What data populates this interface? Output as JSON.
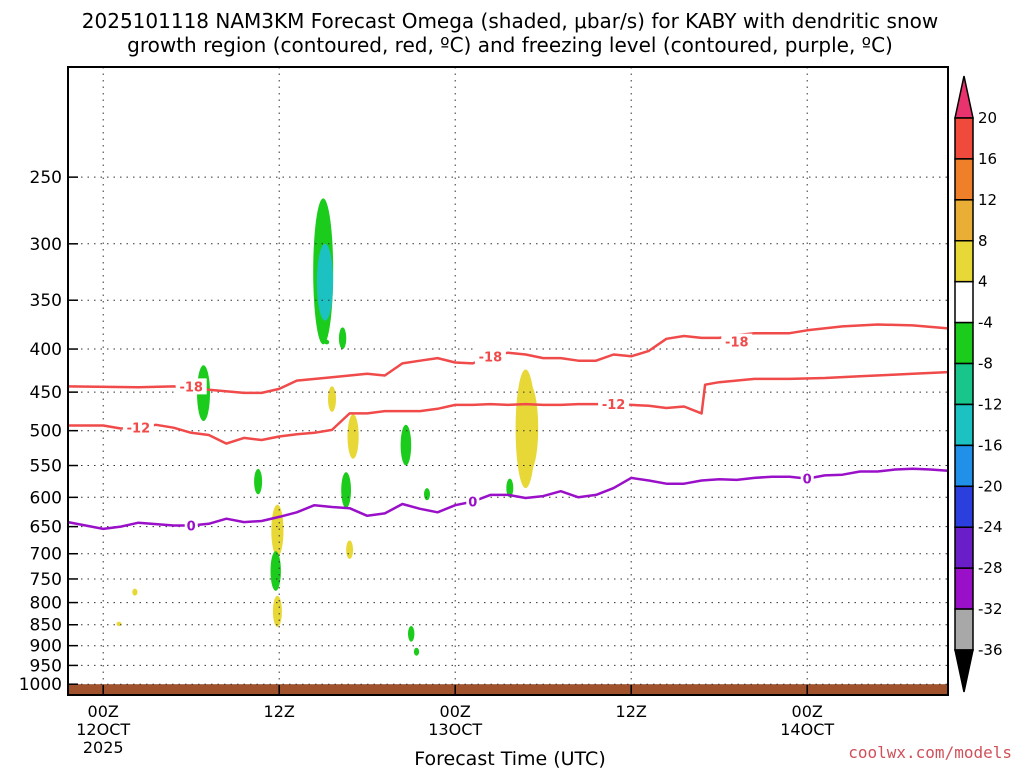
{
  "chart_data": {
    "type": "contour",
    "title_lines": [
      "2025101118 NAM3KM Forecast Omega (shaded, μbar/s) for KABY with dendritic snow",
      "growth region (contoured, red, ºC) and freezing level (contoured, purple, ºC)"
    ],
    "xlabel": "Forecast Time (UTC)",
    "credit": "coolwx.com/models",
    "grid": true,
    "x_axis": {
      "unit": "hours since 2025-10-11 18Z",
      "range": [
        -2,
        48
      ],
      "ticks": [
        {
          "h": 0,
          "lines": [
            "00Z",
            "12OCT",
            "2025"
          ]
        },
        {
          "h": 10,
          "lines": [
            "12Z"
          ]
        },
        {
          "h": 20,
          "lines": [
            "00Z",
            "13OCT"
          ]
        },
        {
          "h": 30,
          "lines": [
            "12Z"
          ]
        },
        {
          "h": 40,
          "lines": [
            "00Z",
            "14OCT"
          ]
        }
      ]
    },
    "y_axis": {
      "unit": "hPa",
      "scale": "log",
      "range": [
        1030,
        185
      ],
      "ticks": [
        250,
        300,
        350,
        400,
        450,
        500,
        550,
        600,
        650,
        700,
        750,
        800,
        850,
        900,
        950,
        1000
      ]
    },
    "colorbar": {
      "levels": [
        "20",
        "16",
        "12",
        "8",
        "4",
        "-4",
        "-8",
        "-12",
        "-16",
        "-20",
        "-24",
        "-28",
        "-32",
        "-36"
      ],
      "bins": [
        {
          "color": "#e8336e",
          "top_arrow": true
        },
        {
          "color": "#f04a3c"
        },
        {
          "color": "#f07f2a"
        },
        {
          "color": "#e8ae35"
        },
        {
          "color": "#e8d837"
        },
        {
          "color": "#ffffff"
        },
        {
          "color": "#1ccc1c"
        },
        {
          "color": "#18c58a"
        },
        {
          "color": "#1cc2c2"
        },
        {
          "color": "#2190e8"
        },
        {
          "color": "#2b3fde"
        },
        {
          "color": "#6a1ec8"
        },
        {
          "color": "#9a0fc8"
        },
        {
          "color": "#a8a8a8"
        },
        {
          "color": "#000000",
          "bottom_arrow": true
        }
      ]
    },
    "ground": {
      "from_p": 1000,
      "color": "#a0522d"
    },
    "contours": [
      {
        "label": "-18",
        "color": "#f04a4a",
        "label_at": [
          [
            5,
            443
          ],
          [
            22,
            408
          ],
          [
            36,
            392
          ]
        ],
        "points": [
          [
            -2,
            443
          ],
          [
            2,
            444
          ],
          [
            4,
            443
          ],
          [
            6,
            447
          ],
          [
            8,
            451
          ],
          [
            9,
            451
          ],
          [
            10,
            446
          ],
          [
            11,
            436
          ],
          [
            13,
            432
          ],
          [
            15,
            428
          ],
          [
            16,
            430
          ],
          [
            17,
            416
          ],
          [
            18,
            413
          ],
          [
            19,
            410
          ],
          [
            20,
            415
          ],
          [
            21,
            416
          ],
          [
            22,
            408
          ],
          [
            23,
            404
          ],
          [
            24,
            406
          ],
          [
            25,
            410
          ],
          [
            26,
            410
          ],
          [
            27,
            413
          ],
          [
            28,
            413
          ],
          [
            29,
            406
          ],
          [
            30,
            408
          ],
          [
            31,
            402
          ],
          [
            32,
            389
          ],
          [
            33,
            386
          ],
          [
            34,
            388
          ],
          [
            35,
            388
          ],
          [
            36,
            385
          ],
          [
            37,
            383
          ],
          [
            39,
            383
          ],
          [
            40,
            380
          ],
          [
            42,
            376
          ],
          [
            44,
            374
          ],
          [
            46,
            375
          ],
          [
            48,
            378
          ]
        ]
      },
      {
        "label": "-12",
        "color": "#f04a4a",
        "label_at": [
          [
            2,
            496
          ],
          [
            29,
            465
          ]
        ],
        "points": [
          [
            -2,
            493
          ],
          [
            0,
            493
          ],
          [
            1,
            497
          ],
          [
            2,
            496
          ],
          [
            3,
            492
          ],
          [
            4,
            496
          ],
          [
            5,
            503
          ],
          [
            6,
            506
          ],
          [
            7,
            518
          ],
          [
            8,
            510
          ],
          [
            9,
            513
          ],
          [
            10,
            508
          ],
          [
            11,
            505
          ],
          [
            12,
            503
          ],
          [
            13,
            499
          ],
          [
            14,
            477
          ],
          [
            15,
            477
          ],
          [
            16,
            474
          ],
          [
            17,
            474
          ],
          [
            18,
            474
          ],
          [
            19,
            471
          ],
          [
            20,
            466
          ],
          [
            21,
            466
          ],
          [
            22,
            465
          ],
          [
            23,
            466
          ],
          [
            24,
            465
          ],
          [
            25,
            466
          ],
          [
            26,
            466
          ],
          [
            27,
            465
          ],
          [
            28,
            465
          ],
          [
            29,
            465
          ],
          [
            30,
            466
          ],
          [
            31,
            467
          ],
          [
            32,
            470
          ],
          [
            33,
            468
          ],
          [
            34,
            477
          ],
          [
            34.2,
            441
          ],
          [
            35,
            438
          ],
          [
            37,
            434
          ],
          [
            39,
            434
          ],
          [
            41,
            433
          ],
          [
            43,
            431
          ],
          [
            45,
            429
          ],
          [
            46,
            428
          ],
          [
            48,
            426
          ]
        ]
      },
      {
        "label": "0",
        "color": "#9a10c8",
        "label_at": [
          [
            5,
            648
          ],
          [
            21,
            607
          ],
          [
            40,
            570
          ]
        ],
        "points": [
          [
            -2,
            642
          ],
          [
            0,
            654
          ],
          [
            1,
            650
          ],
          [
            2,
            643
          ],
          [
            4,
            648
          ],
          [
            5,
            648
          ],
          [
            6,
            645
          ],
          [
            7,
            636
          ],
          [
            8,
            642
          ],
          [
            9,
            640
          ],
          [
            10,
            633
          ],
          [
            11,
            625
          ],
          [
            12,
            613
          ],
          [
            13,
            616
          ],
          [
            14,
            618
          ],
          [
            15,
            631
          ],
          [
            16,
            627
          ],
          [
            17,
            611
          ],
          [
            18,
            619
          ],
          [
            19,
            625
          ],
          [
            20,
            613
          ],
          [
            21,
            607
          ],
          [
            22,
            596
          ],
          [
            23,
            596
          ],
          [
            24,
            601
          ],
          [
            25,
            598
          ],
          [
            26,
            590
          ],
          [
            27,
            600
          ],
          [
            28,
            596
          ],
          [
            29,
            585
          ],
          [
            30,
            569
          ],
          [
            31,
            573
          ],
          [
            32,
            578
          ],
          [
            33,
            578
          ],
          [
            34,
            573
          ],
          [
            35,
            571
          ],
          [
            36,
            572
          ],
          [
            37,
            569
          ],
          [
            38,
            567
          ],
          [
            39,
            567
          ],
          [
            40,
            570
          ],
          [
            41,
            565
          ],
          [
            42,
            564
          ],
          [
            43,
            559
          ],
          [
            44,
            559
          ],
          [
            45,
            556
          ],
          [
            46,
            555
          ],
          [
            47,
            556
          ],
          [
            48,
            558
          ]
        ]
      }
    ],
    "omega_blobs": [
      {
        "value": -5,
        "h": 12.5,
        "p_top": 265,
        "p_bottom": 395
      },
      {
        "value": -13,
        "h": 12.6,
        "p_top": 300,
        "p_bottom": 370
      },
      {
        "value": -5,
        "h": 12.7,
        "p_top": 390,
        "p_bottom": 395
      },
      {
        "value": -5,
        "h": 13.6,
        "p_top": 377,
        "p_bottom": 400
      },
      {
        "value": -5,
        "h": 5.7,
        "p_top": 418,
        "p_bottom": 487
      },
      {
        "value": 5,
        "h": 13.0,
        "p_top": 443,
        "p_bottom": 475
      },
      {
        "value": 5,
        "h": 14.2,
        "p_top": 478,
        "p_bottom": 540
      },
      {
        "value": -5,
        "h": 17.2,
        "p_top": 492,
        "p_bottom": 550
      },
      {
        "value": 5,
        "h": 24.0,
        "p_top": 423,
        "p_bottom": 585
      },
      {
        "value": 6,
        "h": 24.2,
        "p_top": 440,
        "p_bottom": 560
      },
      {
        "value": -5,
        "h": 13.8,
        "p_top": 560,
        "p_bottom": 618
      },
      {
        "value": -5,
        "h": 8.8,
        "p_top": 555,
        "p_bottom": 595
      },
      {
        "value": -5,
        "h": 23.1,
        "p_top": 570,
        "p_bottom": 600
      },
      {
        "value": -5,
        "h": 18.4,
        "p_top": 585,
        "p_bottom": 605
      },
      {
        "value": 5,
        "h": 9.9,
        "p_top": 612,
        "p_bottom": 705
      },
      {
        "value": 5,
        "h": 14.0,
        "p_top": 675,
        "p_bottom": 710
      },
      {
        "value": -5,
        "h": 9.8,
        "p_top": 695,
        "p_bottom": 775
      },
      {
        "value": 5,
        "h": 1.8,
        "p_top": 770,
        "p_bottom": 785
      },
      {
        "value": 5,
        "h": 9.9,
        "p_top": 785,
        "p_bottom": 855
      },
      {
        "value": 5,
        "h": 0.9,
        "p_top": 843,
        "p_bottom": 853
      },
      {
        "value": -5,
        "h": 17.5,
        "p_top": 853,
        "p_bottom": 890
      },
      {
        "value": -5,
        "h": 17.8,
        "p_top": 905,
        "p_bottom": 925
      }
    ]
  }
}
